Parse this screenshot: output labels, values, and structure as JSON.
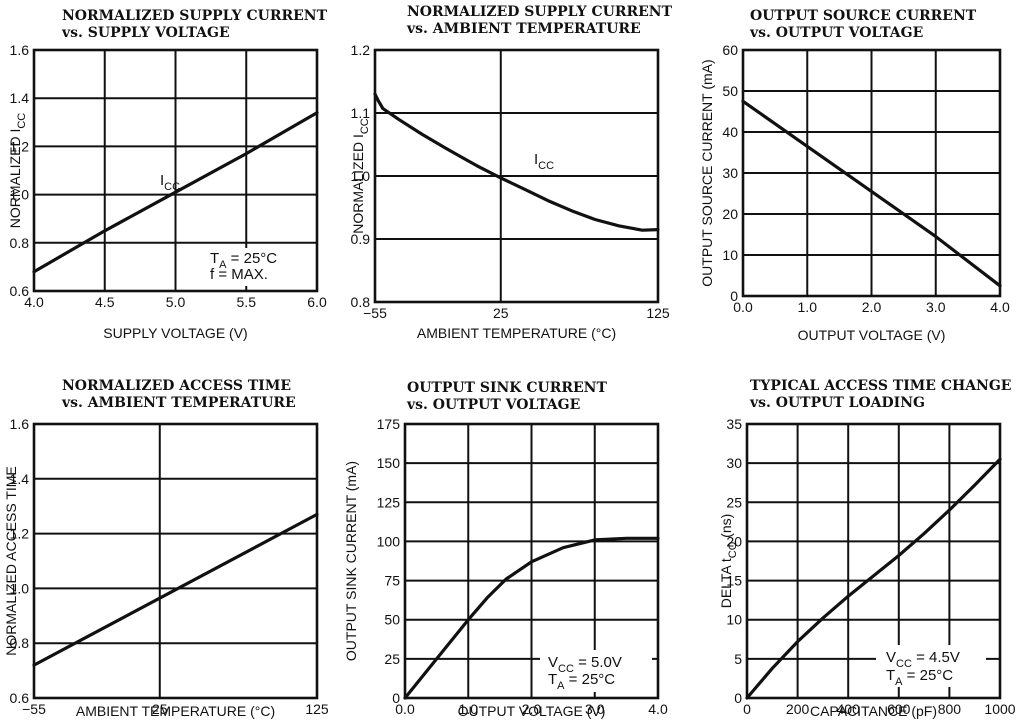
{
  "chart_data": [
    {
      "type": "line",
      "title": "NORMALIZED SUPPLY CURRENT",
      "subtitle": "vs. SUPPLY VOLTAGE",
      "xlabel": "SUPPLY VOLTAGE (V)",
      "ylabel": "NORMALIZED I",
      "ylabel_sub": "CC",
      "xlim": [
        4.0,
        6.0
      ],
      "ylim": [
        0.6,
        1.6
      ],
      "xticks": [
        4.0,
        4.5,
        5.0,
        5.5,
        6.0
      ],
      "xtick_labels": [
        "4.0",
        "4.5",
        "5.0",
        "5.5",
        "6.0"
      ],
      "yticks": [
        0.6,
        0.8,
        1.0,
        1.2,
        1.4,
        1.6
      ],
      "ytick_labels": [
        "0.6",
        "0.8",
        "1.0",
        "1.2",
        "1.4",
        "1.6"
      ],
      "grid": true,
      "series": [
        {
          "x": [
            4.0,
            4.5,
            5.0,
            5.5,
            6.0
          ],
          "y": [
            0.68,
            0.85,
            1.01,
            1.17,
            1.34
          ]
        }
      ],
      "annotations": [
        {
          "text": "I",
          "sub": "CC"
        },
        {
          "text": "T",
          "sub": "A",
          "rest": " = 25°C"
        },
        {
          "text": "f = MAX."
        }
      ]
    },
    {
      "type": "line",
      "title": "NORMALIZED SUPPLY CURRENT",
      "subtitle": "vs. AMBIENT TEMPERATURE",
      "xlabel": "AMBIENT TEMPERATURE (°C)",
      "ylabel": "NORMALIZED I",
      "ylabel_sub": "CC",
      "xlim": [
        -55,
        125
      ],
      "ylim": [
        0.8,
        1.2
      ],
      "xticks": [
        -55,
        25,
        125
      ],
      "xtick_labels": [
        "−55",
        "25",
        "125"
      ],
      "yticks": [
        0.8,
        0.9,
        1.0,
        1.1,
        1.2
      ],
      "ytick_labels": [
        "0.8",
        "0.9",
        "1.0",
        "1.1",
        "1.2"
      ],
      "grid": true,
      "series": [
        {
          "x": [
            -55,
            -53,
            -50,
            -40,
            -25,
            -10,
            0,
            10,
            25,
            40,
            55,
            70,
            85,
            100,
            115,
            125
          ],
          "y": [
            1.13,
            1.12,
            1.107,
            1.09,
            1.066,
            1.044,
            1.03,
            1.016,
            0.997,
            0.979,
            0.961,
            0.945,
            0.931,
            0.921,
            0.914,
            0.915
          ]
        }
      ],
      "annotations": [
        {
          "text": "I",
          "sub": "CC"
        }
      ]
    },
    {
      "type": "line",
      "title": "OUTPUT SOURCE CURRENT",
      "subtitle": "vs. OUTPUT VOLTAGE",
      "xlabel": "OUTPUT VOLTAGE (V)",
      "ylabel": "OUTPUT SOURCE  CURRENT (mA)",
      "xlim": [
        0,
        4.0
      ],
      "ylim": [
        0,
        60
      ],
      "xticks": [
        0,
        1.0,
        2.0,
        3.0,
        4.0
      ],
      "xtick_labels": [
        "0.0",
        "1.0",
        "2.0",
        "3.0",
        "4.0"
      ],
      "yticks": [
        0,
        10,
        20,
        30,
        40,
        50,
        60
      ],
      "ytick_labels": [
        "0",
        "10",
        "20",
        "30",
        "40",
        "50",
        "60"
      ],
      "grid": true,
      "series": [
        {
          "x": [
            0,
            1.0,
            2.0,
            3.0,
            4.0
          ],
          "y": [
            47.5,
            36.5,
            25.5,
            14.5,
            2.5
          ]
        }
      ],
      "annotations": []
    },
    {
      "type": "line",
      "title": "NORMALIZED ACCESS TIME",
      "subtitle": "vs. AMBIENT TEMPERATURE",
      "xlabel": "AMBIENT TEMPERATURE (°C)",
      "ylabel": "NORMALIZED ACCESS TIME",
      "xlim": [
        -55,
        125
      ],
      "ylim": [
        0.6,
        1.6
      ],
      "xticks": [
        -55,
        25,
        125
      ],
      "xtick_labels": [
        "−55",
        "25",
        "125"
      ],
      "yticks": [
        0.6,
        0.8,
        1.0,
        1.2,
        1.4,
        1.6
      ],
      "ytick_labels": [
        "0.6",
        "0.8",
        "1.0",
        "1.2",
        "1.4",
        "1.6"
      ],
      "grid": true,
      "series": [
        {
          "x": [
            -55,
            125
          ],
          "y": [
            0.72,
            1.27
          ]
        }
      ],
      "annotations": []
    },
    {
      "type": "line",
      "title": "OUTPUT SINK CURRENT",
      "subtitle": "vs. OUTPUT VOLTAGE",
      "xlabel": "OUTPUT VOLTAGE (V)",
      "ylabel": "OUTPUT SINK CURRENT (mA)",
      "xlim": [
        0,
        4.0
      ],
      "ylim": [
        0,
        175
      ],
      "xticks": [
        0,
        1.0,
        2.0,
        3.0,
        4.0
      ],
      "xtick_labels": [
        "0.0",
        "1.0",
        "2.0",
        "3.0",
        "4.0"
      ],
      "yticks": [
        0,
        25,
        50,
        75,
        100,
        125,
        150,
        175
      ],
      "ytick_labels": [
        "0",
        "25",
        "50",
        "75",
        "100",
        "125",
        "150",
        "175"
      ],
      "grid": true,
      "series": [
        {
          "x": [
            0,
            0.5,
            1.0,
            1.3,
            1.6,
            2.0,
            2.5,
            3.0,
            3.5,
            4.0
          ],
          "y": [
            0,
            25,
            50,
            64,
            76,
            87,
            96,
            101,
            102,
            102
          ]
        }
      ],
      "annotations": [
        {
          "text": "V",
          "sub": "CC",
          "rest": " = 5.0V"
        },
        {
          "text": "T",
          "sub": "A",
          "rest": " = 25°C"
        }
      ]
    },
    {
      "type": "line",
      "title": "TYPICAL ACCESS TIME CHANGE",
      "subtitle": "vs. OUTPUT LOADING",
      "xlabel": "CAPACITANCE (pF)",
      "ylabel": "DELTA t",
      "ylabel_sub": "CO",
      "ylabel_rest": " (ns)",
      "xlim": [
        0,
        1000
      ],
      "ylim": [
        0,
        35
      ],
      "xticks": [
        0,
        200,
        400,
        600,
        800,
        1000
      ],
      "xtick_labels": [
        "0",
        "200",
        "400",
        "600",
        "800",
        "1000"
      ],
      "yticks": [
        0,
        5,
        10,
        15,
        20,
        25,
        30,
        35
      ],
      "ytick_labels": [
        "0",
        "5",
        "10",
        "15",
        "20",
        "25",
        "30",
        "35"
      ],
      "grid": true,
      "series": [
        {
          "x": [
            0,
            100,
            200,
            300,
            400,
            500,
            600,
            700,
            800,
            900,
            1000
          ],
          "y": [
            0,
            3.8,
            7.2,
            10.2,
            13,
            15.6,
            18.2,
            21,
            24,
            27.2,
            30.5
          ]
        }
      ],
      "annotations": [
        {
          "text": "V",
          "sub": "CC",
          "rest": " = 4.5V"
        },
        {
          "text": "T",
          "sub": "A",
          "rest": " = 25°C"
        }
      ]
    }
  ]
}
